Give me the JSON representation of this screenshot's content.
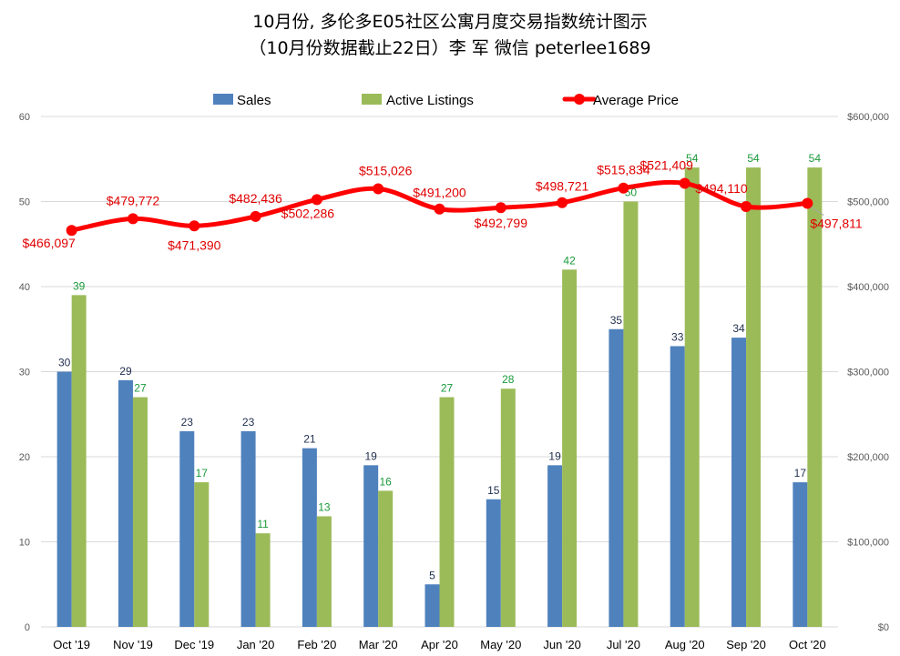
{
  "chart_data": {
    "type": "bar",
    "title": "10月份, 多伦多E05社区公寓月度交易指数统计图示",
    "subtitle": "（10月份数据截止22日）李 军  微信  peterlee1689",
    "categories": [
      "Oct '19",
      "Nov '19",
      "Dec '19",
      "Jan '20",
      "Feb '20",
      "Mar '20",
      "Apr '20",
      "May '20",
      "Jun '20",
      "Jul '20",
      "Aug '20",
      "Sep '20",
      "Oct '20"
    ],
    "series": [
      {
        "name": "Sales",
        "type": "bar",
        "axis": "left",
        "color": "#4f81bd",
        "values": [
          30,
          29,
          23,
          23,
          21,
          19,
          5,
          15,
          19,
          35,
          33,
          34,
          17
        ],
        "labels": [
          "30",
          "29",
          "23",
          "23",
          "21",
          "19",
          "5",
          "15",
          "19",
          "35",
          "33",
          "34",
          "17"
        ]
      },
      {
        "name": "Active Listings",
        "type": "bar",
        "axis": "left",
        "color": "#9bbb59",
        "values": [
          39,
          27,
          17,
          11,
          13,
          16,
          27,
          28,
          42,
          50,
          54,
          54,
          54
        ],
        "labels": [
          "39",
          "27",
          "17",
          "11",
          "13",
          "16",
          "27",
          "28",
          "42",
          "50",
          "54",
          "54",
          "54"
        ]
      },
      {
        "name": "Average Price",
        "type": "line",
        "axis": "right",
        "color": "#ff0000",
        "values": [
          466097,
          479772,
          471390,
          482436,
          502286,
          515026,
          491200,
          492799,
          498721,
          515834,
          521409,
          494110,
          497811
        ],
        "labels": [
          "$466,097",
          "$479,772",
          "$471,390",
          "$482,436",
          "$502,286",
          "$515,026",
          "$491,200",
          "$492,799",
          "$498,721",
          "$515,834",
          "$521,409",
          "$494,110",
          "$497,811"
        ]
      }
    ],
    "y_left": {
      "lim": [
        0,
        60
      ],
      "ticks": [
        "0",
        "10",
        "20",
        "30",
        "40",
        "50",
        "60"
      ]
    },
    "y_right": {
      "lim": [
        0,
        600000
      ],
      "ticks": [
        "$0",
        "$100,000",
        "$200,000",
        "$300,000",
        "$400,000",
        "$500,000",
        "$600,000"
      ]
    },
    "grid": true,
    "legend_position": "top"
  }
}
